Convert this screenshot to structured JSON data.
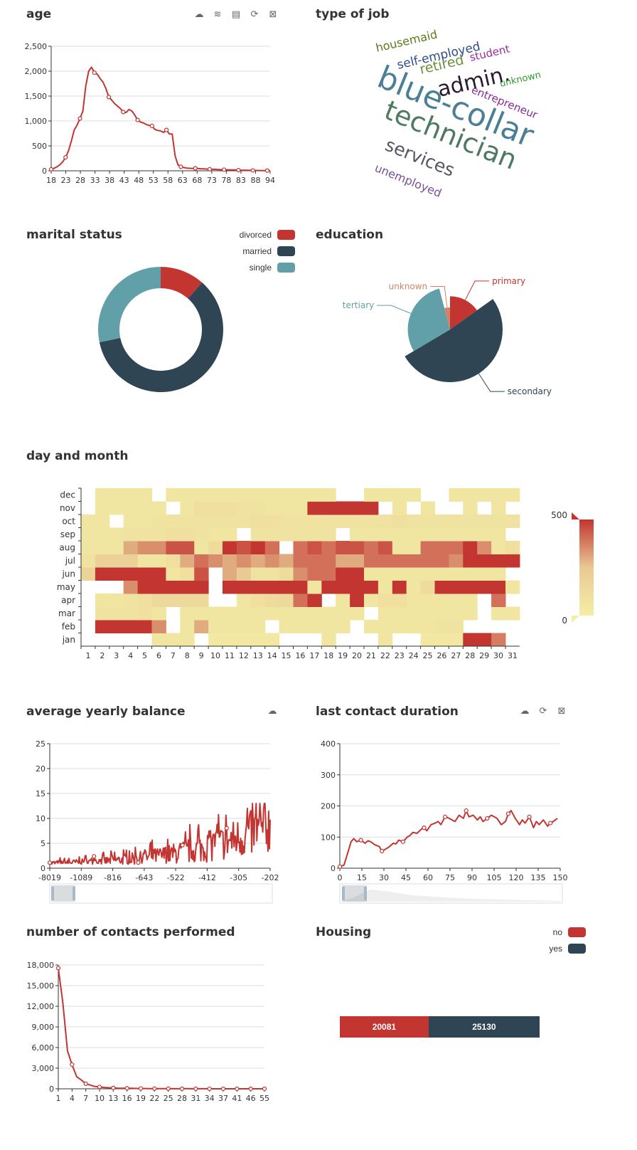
{
  "colors": {
    "red": "#c23531",
    "navy": "#2f4554",
    "teal": "#61a0a8",
    "grid": "#e0e0e0",
    "axis": "#333333"
  },
  "age": {
    "title": "age",
    "toolbox": [
      "save-icon",
      "line-chart-icon",
      "bar-chart-icon",
      "restore-icon",
      "zoom-reset-icon"
    ],
    "chart_data": {
      "type": "line",
      "title": "age",
      "xlabels": [
        "18",
        "23",
        "28",
        "33",
        "38",
        "43",
        "48",
        "53",
        "58",
        "63",
        "68",
        "73",
        "78",
        "83",
        "88",
        "94"
      ],
      "x": [
        18,
        19,
        20,
        21,
        22,
        23,
        24,
        25,
        26,
        27,
        28,
        29,
        30,
        31,
        32,
        33,
        34,
        35,
        36,
        37,
        38,
        39,
        40,
        41,
        42,
        43,
        44,
        45,
        46,
        47,
        48,
        49,
        50,
        51,
        52,
        53,
        54,
        55,
        56,
        57,
        58,
        59,
        60,
        61,
        62,
        63,
        64,
        65,
        66,
        67,
        68,
        69,
        70,
        71,
        72,
        73,
        74,
        75,
        76,
        77,
        78,
        79,
        80,
        81,
        82,
        83,
        84,
        85,
        86,
        87,
        88,
        89,
        90,
        91,
        92,
        93,
        94
      ],
      "y": [
        30,
        50,
        80,
        120,
        180,
        270,
        400,
        600,
        820,
        920,
        1050,
        1200,
        1700,
        2000,
        2080,
        1970,
        1940,
        1850,
        1780,
        1650,
        1480,
        1420,
        1350,
        1300,
        1250,
        1180,
        1170,
        1230,
        1200,
        1120,
        1020,
        980,
        960,
        930,
        910,
        900,
        830,
        810,
        800,
        770,
        820,
        740,
        740,
        300,
        120,
        80,
        65,
        55,
        50,
        45,
        50,
        45,
        40,
        38,
        35,
        32,
        30,
        28,
        25,
        22,
        22,
        20,
        18,
        17,
        15,
        14,
        12,
        11,
        10,
        9,
        8,
        7,
        6,
        5,
        5,
        4,
        3
      ],
      "ylim": [
        0,
        2500
      ],
      "yticks": [
        "0",
        "500",
        "1,000",
        "1,500",
        "2,000",
        "2,500"
      ]
    }
  },
  "job": {
    "title": "type of job",
    "words": [
      {
        "text": "housemaid",
        "color": "#5a7a1a",
        "size": 16,
        "rotate": -13
      },
      {
        "text": "self-employed",
        "color": "#2f4f8a",
        "size": 17,
        "rotate": -13
      },
      {
        "text": "retired",
        "color": "#6f8f3a",
        "size": 19,
        "rotate": -13
      },
      {
        "text": "student",
        "color": "#9a2fa0",
        "size": 15,
        "rotate": -13
      },
      {
        "text": "blue-collar",
        "color": "#4a7f96",
        "size": 44,
        "rotate": 22
      },
      {
        "text": "admin.",
        "color": "#2a1a30",
        "size": 30,
        "rotate": -13
      },
      {
        "text": "unknown",
        "color": "#2f9a2f",
        "size": 13,
        "rotate": -13
      },
      {
        "text": "entrepreneur",
        "color": "#8a2a9a",
        "size": 15,
        "rotate": 22
      },
      {
        "text": "technician",
        "color": "#4f7a62",
        "size": 38,
        "rotate": 22
      },
      {
        "text": "services",
        "color": "#555566",
        "size": 25,
        "rotate": 22
      },
      {
        "text": "unemployed",
        "color": "#7a4f9a",
        "size": 16,
        "rotate": 22
      }
    ]
  },
  "marital": {
    "title": "marital status",
    "chart_data": {
      "type": "pie",
      "categories": [
        "divorced",
        "married",
        "single"
      ],
      "values": [
        5207,
        27214,
        12790
      ],
      "colors": [
        "#c23531",
        "#2f4554",
        "#61a0a8"
      ]
    }
  },
  "education": {
    "title": "education",
    "chart_data": {
      "type": "pie",
      "categories": [
        "primary",
        "secondary",
        "tertiary",
        "unknown"
      ],
      "values": [
        6851,
        23202,
        13301,
        1857
      ],
      "colors": [
        "#c23531",
        "#2f4554",
        "#61a0a8",
        "#d48265"
      ]
    }
  },
  "daymonth": {
    "title": "day and month",
    "chart_data": {
      "type": "heatmap",
      "months": [
        "jan",
        "feb",
        "mar",
        "apr",
        "may",
        "jun",
        "jul",
        "aug",
        "sep",
        "oct",
        "nov",
        "dec"
      ],
      "days": [
        "1",
        "2",
        "3",
        "4",
        "5",
        "6",
        "7",
        "8",
        "9",
        "10",
        "11",
        "12",
        "13",
        "14",
        "15",
        "16",
        "17",
        "18",
        "19",
        "20",
        "21",
        "22",
        "23",
        "24",
        "25",
        "26",
        "27",
        "28",
        "29",
        "30",
        "31"
      ],
      "values": [
        [
          0,
          0,
          0,
          0,
          0,
          60,
          60,
          60,
          0,
          40,
          40,
          40,
          40,
          40,
          0,
          0,
          0,
          60,
          0,
          0,
          0,
          60,
          0,
          0,
          40,
          40,
          40,
          500,
          600,
          380,
          0
        ],
        [
          0,
          600,
          500,
          600,
          600,
          350,
          0,
          60,
          300,
          60,
          60,
          60,
          60,
          0,
          60,
          60,
          60,
          60,
          60,
          0,
          60,
          60,
          60,
          60,
          60,
          80,
          80,
          0,
          0,
          0,
          0
        ],
        [
          0,
          80,
          80,
          80,
          100,
          60,
          0,
          60,
          60,
          60,
          60,
          60,
          60,
          60,
          60,
          60,
          60,
          60,
          60,
          60,
          0,
          60,
          60,
          60,
          60,
          60,
          60,
          60,
          0,
          60,
          60
        ],
        [
          0,
          60,
          60,
          80,
          100,
          140,
          140,
          140,
          140,
          0,
          0,
          60,
          100,
          120,
          140,
          400,
          550,
          0,
          60,
          550,
          60,
          100,
          100,
          60,
          60,
          60,
          60,
          60,
          0,
          400,
          0
        ],
        [
          0,
          0,
          0,
          350,
          600,
          600,
          600,
          600,
          500,
          0,
          600,
          600,
          600,
          600,
          600,
          500,
          60,
          600,
          500,
          550,
          500,
          60,
          600,
          60,
          120,
          600,
          600,
          600,
          600,
          500,
          60
        ],
        [
          180,
          600,
          600,
          500,
          500,
          500,
          60,
          100,
          450,
          0,
          300,
          250,
          80,
          80,
          120,
          350,
          400,
          400,
          550,
          600,
          60,
          60,
          60,
          60,
          60,
          60,
          60,
          60,
          60,
          60,
          0
        ],
        [
          80,
          200,
          200,
          200,
          60,
          60,
          100,
          300,
          400,
          350,
          300,
          350,
          300,
          350,
          300,
          400,
          400,
          400,
          300,
          300,
          400,
          400,
          400,
          400,
          400,
          400,
          350,
          500,
          500,
          500,
          550
        ],
        [
          60,
          60,
          60,
          300,
          350,
          350,
          450,
          450,
          60,
          120,
          500,
          450,
          500,
          400,
          0,
          400,
          450,
          400,
          450,
          450,
          400,
          450,
          60,
          60,
          400,
          400,
          400,
          500,
          350,
          60,
          100
        ],
        [
          60,
          60,
          60,
          80,
          80,
          80,
          100,
          100,
          80,
          60,
          60,
          0,
          80,
          80,
          80,
          80,
          80,
          80,
          0,
          60,
          60,
          60,
          60,
          60,
          60,
          60,
          60,
          60,
          60,
          60,
          0
        ],
        [
          60,
          60,
          0,
          60,
          60,
          80,
          80,
          80,
          80,
          80,
          80,
          80,
          100,
          100,
          80,
          80,
          80,
          80,
          80,
          80,
          80,
          80,
          100,
          80,
          80,
          80,
          80,
          80,
          80,
          80,
          80
        ],
        [
          0,
          60,
          60,
          60,
          60,
          60,
          0,
          60,
          100,
          100,
          100,
          80,
          80,
          60,
          60,
          60,
          550,
          550,
          550,
          550,
          550,
          0,
          60,
          0,
          60,
          0,
          0,
          60,
          0,
          60,
          0
        ],
        [
          0,
          60,
          60,
          60,
          60,
          0,
          60,
          60,
          60,
          60,
          60,
          60,
          60,
          60,
          60,
          60,
          60,
          60,
          0,
          0,
          60,
          60,
          60,
          60,
          0,
          0,
          60,
          60,
          60,
          60,
          60
        ]
      ],
      "visualmap": {
        "min": 0,
        "max": 500,
        "labels": [
          "500",
          "0"
        ]
      }
    }
  },
  "balance": {
    "title": "average yearly balance",
    "toolbox": [
      "save-icon"
    ],
    "chart_data": {
      "type": "line",
      "title": "average yearly balance",
      "xlabels": [
        "-8019",
        "-1089",
        "-816",
        "-643",
        "-522",
        "-412",
        "-305",
        "-202"
      ],
      "ylim": [
        0,
        25
      ],
      "yticks": [
        "0",
        "5",
        "10",
        "15",
        "20",
        "25"
      ],
      "points": 300,
      "note_values": "noisy count series rising from ~1 to ~12 across the axis"
    }
  },
  "duration": {
    "title": "last contact duration",
    "toolbox": [
      "save-icon",
      "restore-icon",
      "zoom-reset-icon"
    ],
    "chart_data": {
      "type": "line",
      "title": "last contact duration",
      "xlabels": [
        "0",
        "15",
        "30",
        "45",
        "60",
        "75",
        "90",
        "105",
        "120",
        "135",
        "150"
      ],
      "x": [
        0,
        3,
        5,
        8,
        10,
        12,
        15,
        18,
        20,
        22,
        25,
        28,
        30,
        32,
        35,
        38,
        40,
        42,
        45,
        48,
        50,
        52,
        55,
        58,
        60,
        62,
        65,
        68,
        70,
        72,
        75,
        78,
        80,
        82,
        85,
        88,
        90,
        92,
        95,
        98,
        100,
        102,
        105,
        108,
        110,
        112,
        115,
        118,
        120,
        122,
        125,
        128,
        130,
        132,
        135,
        138,
        140,
        142,
        145,
        148,
        150,
        152,
        155
      ],
      "y": [
        5,
        10,
        40,
        85,
        95,
        85,
        90,
        80,
        88,
        85,
        75,
        70,
        55,
        60,
        68,
        80,
        78,
        90,
        85,
        100,
        105,
        115,
        112,
        125,
        130,
        120,
        140,
        145,
        150,
        140,
        165,
        160,
        155,
        150,
        170,
        160,
        185,
        165,
        170,
        155,
        165,
        150,
        160,
        170,
        165,
        160,
        140,
        150,
        175,
        185,
        160,
        140,
        155,
        145,
        165,
        130,
        150,
        140,
        155,
        135,
        145,
        150,
        160
      ],
      "ylim": [
        0,
        400
      ],
      "yticks": [
        "0",
        "100",
        "200",
        "300",
        "400"
      ]
    }
  },
  "campaign": {
    "title": "number of contacts performed",
    "chart_data": {
      "type": "line",
      "title": "number of contacts performed",
      "xlabels": [
        "1",
        "4",
        "7",
        "10",
        "13",
        "16",
        "19",
        "22",
        "25",
        "28",
        "31",
        "34",
        "37",
        "41",
        "46",
        "55"
      ],
      "x": [
        1,
        2,
        3,
        4,
        5,
        6,
        7,
        8,
        9,
        10,
        11,
        12,
        13,
        14,
        15,
        16,
        17,
        18,
        19,
        20,
        21,
        22,
        23,
        24,
        25,
        26,
        27,
        28,
        29,
        30,
        31,
        32,
        33,
        34,
        35,
        36,
        37,
        38,
        39,
        41,
        43,
        44,
        46,
        50,
        51,
        55,
        58,
        63
      ],
      "y": [
        17544,
        12505,
        5521,
        3522,
        1764,
        1291,
        735,
        540,
        327,
        266,
        201,
        155,
        133,
        93,
        84,
        79,
        69,
        51,
        44,
        43,
        35,
        23,
        22,
        20,
        22,
        13,
        10,
        16,
        19,
        9,
        12,
        9,
        6,
        5,
        4,
        4,
        2,
        3,
        3,
        2,
        3,
        1,
        1,
        1,
        1,
        1,
        1,
        1
      ],
      "ylim": [
        0,
        18000
      ],
      "yticks": [
        "0",
        "3,000",
        "6,000",
        "9,000",
        "12,000",
        "15,000",
        "18,000"
      ]
    }
  },
  "housing": {
    "title": "Housing",
    "chart_data": {
      "type": "bar",
      "categories": [
        "no",
        "yes"
      ],
      "values": [
        20081,
        25130
      ],
      "colors": [
        "#c23531",
        "#2f4554"
      ],
      "labels": [
        "20081",
        "25130"
      ]
    }
  }
}
